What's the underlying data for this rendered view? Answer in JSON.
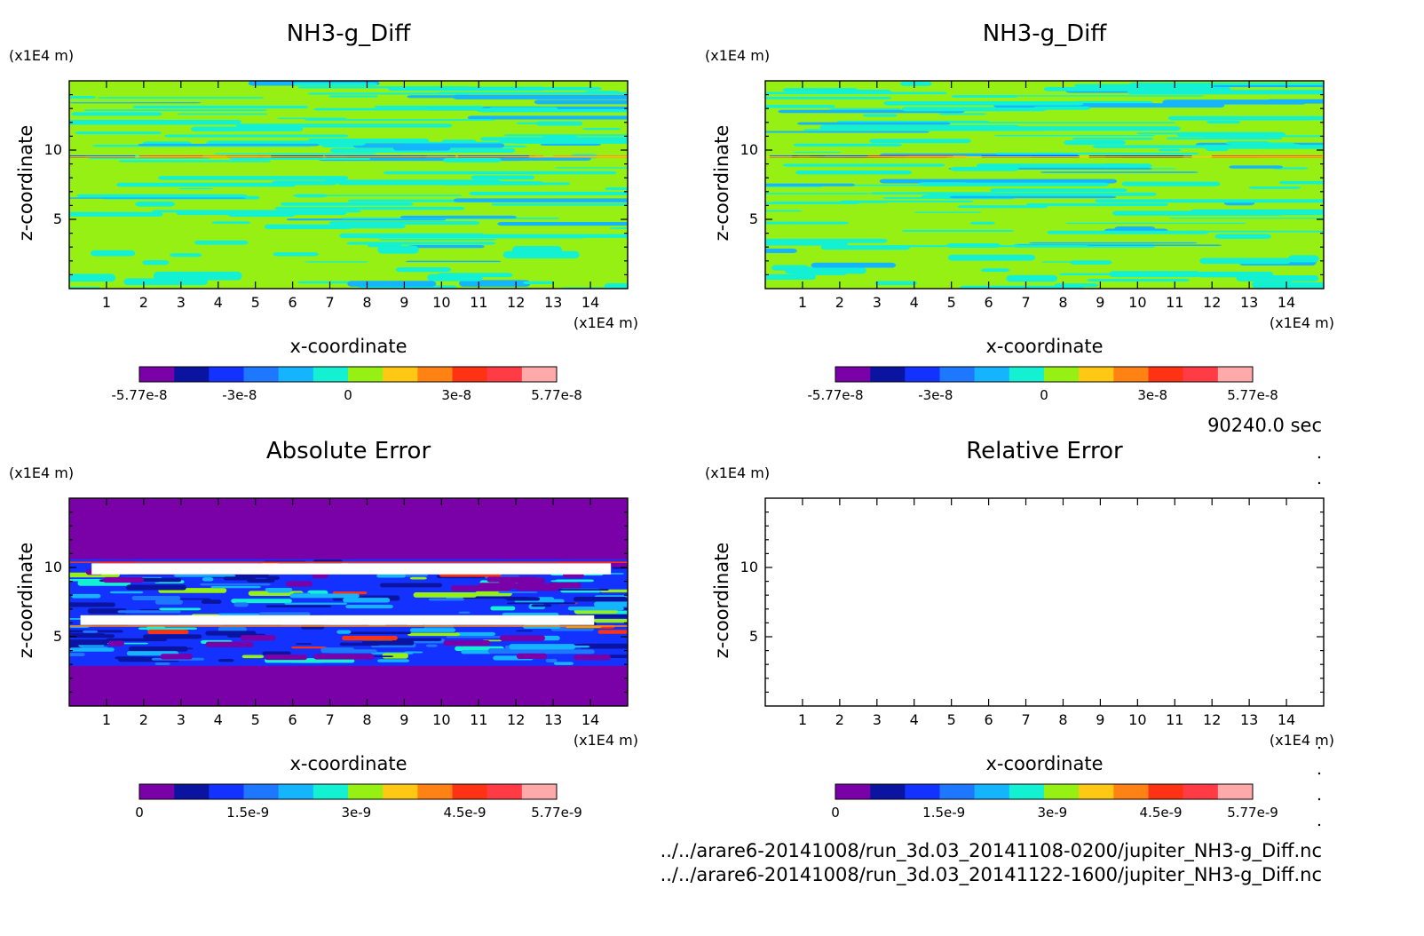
{
  "figure": {
    "time_label": "90240.0 sec",
    "file_paths": [
      "../../arare6-20141008/run_3d.03_20141108-0200/jupiter_NH3-g_Diff.nc",
      "../../arare6-20141008/run_3d.03_20141122-1600/jupiter_NH3-g_Diff.nc"
    ]
  },
  "chart_data": [
    {
      "type": "heatmap",
      "title": "NH3-g_Diff",
      "xlabel": "x-coordinate",
      "ylabel": "z-coordinate",
      "x_unit": "(x1E4 m)",
      "y_unit": "(x1E4 m)",
      "xlim": [
        0,
        15
      ],
      "ylim": [
        0,
        15
      ],
      "x_ticks": [
        "1",
        "2",
        "3",
        "4",
        "5",
        "6",
        "7",
        "8",
        "9",
        "10",
        "11",
        "12",
        "13",
        "14"
      ],
      "y_ticks": [
        "5",
        "10"
      ],
      "colorbar": {
        "range": [
          -5.77e-08,
          5.77e-08
        ],
        "labels": [
          "-5.77e-8",
          "-3e-8",
          "0",
          "3e-8",
          "5.77e-8"
        ],
        "colors": [
          "#7a00a8",
          "#0a14a0",
          "#1432ff",
          "#1e78ff",
          "#14b4ff",
          "#14f0d2",
          "#96f014",
          "#ffc814",
          "#ff8214",
          "#ff3214",
          "#ff3c46",
          "#ffaaaa"
        ]
      },
      "pattern": "banded stripes dominated by values near 0 (cyan/green); thin strong band near z=9.5"
    },
    {
      "type": "heatmap",
      "title": "NH3-g_Diff",
      "xlabel": "x-coordinate",
      "ylabel": "z-coordinate",
      "x_unit": "(x1E4 m)",
      "y_unit": "(x1E4 m)",
      "xlim": [
        0,
        15
      ],
      "ylim": [
        0,
        15
      ],
      "x_ticks": [
        "1",
        "2",
        "3",
        "4",
        "5",
        "6",
        "7",
        "8",
        "9",
        "10",
        "11",
        "12",
        "13",
        "14"
      ],
      "y_ticks": [
        "5",
        "10"
      ],
      "colorbar": {
        "range": [
          -5.77e-08,
          5.77e-08
        ],
        "labels": [
          "-5.77e-8",
          "-3e-8",
          "0",
          "3e-8",
          "5.77e-8"
        ],
        "colors": [
          "#7a00a8",
          "#0a14a0",
          "#1432ff",
          "#1e78ff",
          "#14b4ff",
          "#14f0d2",
          "#96f014",
          "#ffc814",
          "#ff8214",
          "#ff3214",
          "#ff3c46",
          "#ffaaaa"
        ]
      },
      "pattern": "banded stripes dominated by values near 0 (cyan/green); thin strong band near z=9.5"
    },
    {
      "type": "heatmap",
      "title": "Absolute Error",
      "xlabel": "x-coordinate",
      "ylabel": "z-coordinate",
      "x_unit": "(x1E4 m)",
      "y_unit": "(x1E4 m)",
      "xlim": [
        0,
        15
      ],
      "ylim": [
        0,
        15
      ],
      "x_ticks": [
        "1",
        "2",
        "3",
        "4",
        "5",
        "6",
        "7",
        "8",
        "9",
        "10",
        "11",
        "12",
        "13",
        "14"
      ],
      "y_ticks": [
        "5",
        "10"
      ],
      "colorbar": {
        "range": [
          0,
          5.77e-09
        ],
        "labels": [
          "0",
          "1.5e-9",
          "3e-9",
          "4.5e-9",
          "5.77e-9"
        ],
        "colors": [
          "#7a00a8",
          "#0a14a0",
          "#1432ff",
          "#1e78ff",
          "#14b4ff",
          "#14f0d2",
          "#96f014",
          "#ffc814",
          "#ff8214",
          "#ff3214",
          "#ff3c46",
          "#ffaaaa"
        ]
      },
      "pattern": "near-zero (purple) above z~10.5 and below z~3; noisy blue band z~3-10.5; values exceeding scale (white) near z~9.5-10.3 and z~5.9-6.5"
    },
    {
      "type": "heatmap",
      "title": "Relative Error",
      "xlabel": "x-coordinate",
      "ylabel": "z-coordinate",
      "x_unit": "(x1E4 m)",
      "y_unit": "(x1E4 m)",
      "xlim": [
        0,
        15
      ],
      "ylim": [
        0,
        15
      ],
      "x_ticks": [
        "1",
        "2",
        "3",
        "4",
        "5",
        "6",
        "7",
        "8",
        "9",
        "10",
        "11",
        "12",
        "13",
        "14"
      ],
      "y_ticks": [
        "5",
        "10"
      ],
      "colorbar": {
        "range": [
          0,
          5.77e-09
        ],
        "labels": [
          "0",
          "1.5e-9",
          "3e-9",
          "4.5e-9",
          "5.77e-9"
        ],
        "colors": [
          "#7a00a8",
          "#0a14a0",
          "#1432ff",
          "#1e78ff",
          "#14b4ff",
          "#14f0d2",
          "#96f014",
          "#ffc814",
          "#ff8214",
          "#ff3214",
          "#ff3c46",
          "#ffaaaa"
        ]
      },
      "pattern": "empty"
    }
  ]
}
